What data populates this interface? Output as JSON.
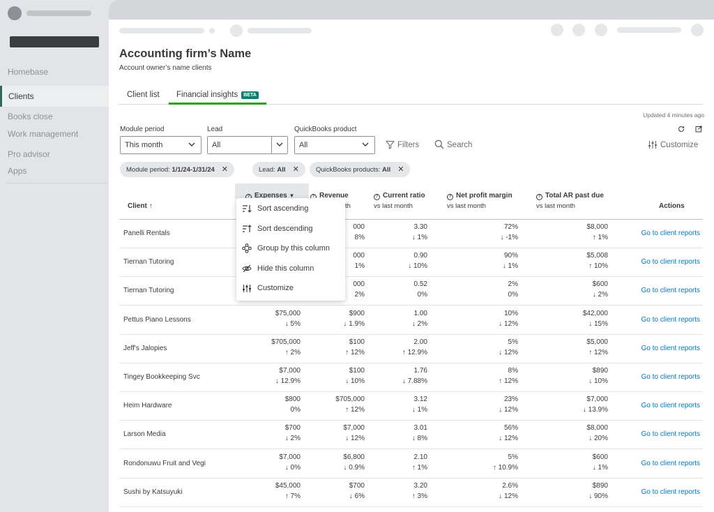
{
  "sidebar": {
    "items": [
      {
        "label": "Homebase"
      },
      {
        "label": "Clients"
      },
      {
        "label": "Books close"
      },
      {
        "label": "Work management"
      },
      {
        "label": "Pro advisor"
      },
      {
        "label": "Apps"
      }
    ],
    "active_index": 1
  },
  "header": {
    "title": "Accounting firm’s Name",
    "subtitle": "Account owner’s name clients"
  },
  "tabs": [
    {
      "label": "Client list"
    },
    {
      "label": "Financial insights",
      "badge": "BETA"
    }
  ],
  "status": {
    "updated": "Updated 4 minutes ago"
  },
  "filters": {
    "module_period": {
      "label": "Module period",
      "value": "This month"
    },
    "lead": {
      "label": "Lead",
      "value": "All"
    },
    "product": {
      "label": "QuickBooks product",
      "value": "All"
    },
    "filters_label": "Filters",
    "search_label": "Search",
    "customize_label": "Customize"
  },
  "chips": [
    {
      "key": "Module period: ",
      "value": "1/1/24-1/31/24"
    },
    {
      "key": "Lead: ",
      "value": "All"
    },
    {
      "key": "QuickBooks products: ",
      "value": "All"
    }
  ],
  "table": {
    "headers": {
      "client": "Client",
      "expenses": "Expenses",
      "revenue": "Revenue",
      "revenue_sub": "th",
      "current_ratio": "Current ratio",
      "current_ratio_sub": "vs last month",
      "npm": "Net profit margin",
      "npm_sub": "vs last month",
      "ar": "Total AR past due",
      "ar_sub": "vs last month",
      "actions": "Actions"
    },
    "link_label": "Go to client reports",
    "rows": [
      {
        "name": "Panelli Rentals",
        "expenses": [
          "",
          ""
        ],
        "revenue": [
          "000",
          "8%"
        ],
        "ratio": [
          "3.30",
          "↓ 1%"
        ],
        "npm": [
          "72%",
          "↓ -1%"
        ],
        "ar": [
          "$8,000",
          "↑ 1%"
        ]
      },
      {
        "name": "Tiernan Tutoring",
        "expenses": [
          "",
          ""
        ],
        "revenue": [
          "000",
          "1%"
        ],
        "ratio": [
          "0.90",
          "↓ 10%"
        ],
        "npm": [
          "90%",
          "↓ 1%"
        ],
        "ar": [
          "$5,008",
          "↑ 10%"
        ]
      },
      {
        "name": "Tiernan Tutoring",
        "expenses": [
          "",
          ""
        ],
        "revenue": [
          "000",
          "2%"
        ],
        "ratio": [
          "0.52",
          "0%"
        ],
        "npm": [
          "2%",
          "0%"
        ],
        "ar": [
          "$600",
          "↓ 2%"
        ]
      },
      {
        "name": "Pettus Piano Lessons",
        "expenses": [
          "$75,000",
          "↓ 5%"
        ],
        "revenue": [
          "$900",
          "↓ 1.9%"
        ],
        "ratio": [
          "1.00",
          "↓ 2%"
        ],
        "npm": [
          "10%",
          "↓ 12%"
        ],
        "ar": [
          "$42,000",
          "↓ 15%"
        ]
      },
      {
        "name": "Jeff's Jalopies",
        "expenses": [
          "$705,000",
          "↑ 2%"
        ],
        "revenue": [
          "$100",
          "↑ 12%"
        ],
        "ratio": [
          "2.00",
          "↑ 12.9%"
        ],
        "npm": [
          "5%",
          "↓ 12%"
        ],
        "ar": [
          "$5,000",
          "↑ 12%"
        ]
      },
      {
        "name": "Tingey Bookkeeping Svc",
        "expenses": [
          "$7,000",
          "↓ 12.9%"
        ],
        "revenue": [
          "$100",
          "↓ 10%"
        ],
        "ratio": [
          "1.76",
          "↓ 7.88%"
        ],
        "npm": [
          "8%",
          "↑ 12%"
        ],
        "ar": [
          "$890",
          "↓ 10%"
        ]
      },
      {
        "name": "Heim Hardware",
        "expenses": [
          "$800",
          "0%"
        ],
        "revenue": [
          "$705,000",
          "↑ 12%"
        ],
        "ratio": [
          "3.12",
          "↓ 1%"
        ],
        "npm": [
          "23%",
          "↓ 12%"
        ],
        "ar": [
          "$7,000",
          "↓ 13.9%"
        ]
      },
      {
        "name": "Larson Media",
        "expenses": [
          "$700",
          "↓ 2%"
        ],
        "revenue": [
          "$7,000",
          "↓ 12%"
        ],
        "ratio": [
          "3.01",
          "↓ 8%"
        ],
        "npm": [
          "56%",
          "↓ 12%"
        ],
        "ar": [
          "$8,000",
          "↓ 20%"
        ]
      },
      {
        "name": "Rondonuwu Fruit and Vegi",
        "expenses": [
          "$7,000",
          "↓ 0%"
        ],
        "revenue": [
          "$6,800",
          "↓ 0.9%"
        ],
        "ratio": [
          "2.10",
          "↑ 1%"
        ],
        "npm": [
          "5%",
          "↑ 10.9%"
        ],
        "ar": [
          "$600",
          "↓ 1%"
        ]
      },
      {
        "name": "Sushi by Katsuyuki",
        "expenses": [
          "$45,000",
          "↑ 7%"
        ],
        "revenue": [
          "$700",
          "↓ 6%"
        ],
        "ratio": [
          "3.20",
          "↑ 3%"
        ],
        "npm": [
          "2.6%",
          "↓ 12%"
        ],
        "ar": [
          "$890",
          "↓ 90%"
        ]
      }
    ]
  },
  "menu": {
    "items": [
      {
        "label": "Sort ascending",
        "icon": "sort-ascending-icon"
      },
      {
        "label": "Sort descending",
        "icon": "sort-descending-icon"
      },
      {
        "label": "Group by this column",
        "icon": "group-icon"
      },
      {
        "label": "Hide this column",
        "icon": "eye-off-icon"
      },
      {
        "label": "Customize",
        "icon": "sliders-icon"
      }
    ]
  },
  "colors": {
    "accent_green": "#2ca01c",
    "link_blue": "#0077c5",
    "beta_teal": "#0d7f6f",
    "active_bar": "#2e6a5b"
  }
}
